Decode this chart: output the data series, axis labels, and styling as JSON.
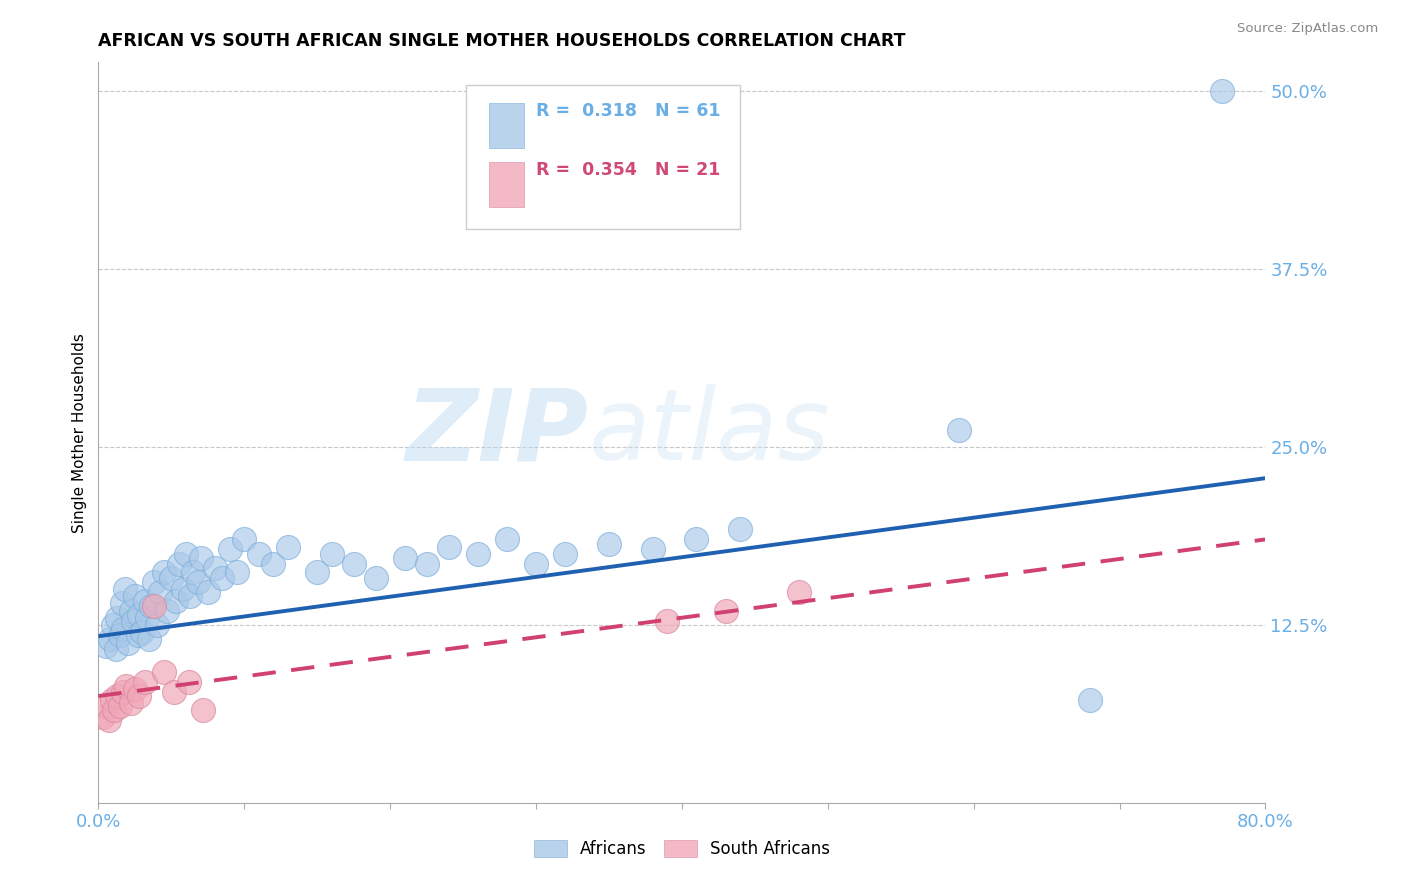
{
  "title": "AFRICAN VS SOUTH AFRICAN SINGLE MOTHER HOUSEHOLDS CORRELATION CHART",
  "source_text": "Source: ZipAtlas.com",
  "ylabel": "Single Mother Households",
  "xlim": [
    0.0,
    0.8
  ],
  "ylim": [
    0.0,
    0.52
  ],
  "yticks": [
    0.125,
    0.25,
    0.375,
    0.5
  ],
  "ytick_labels": [
    "12.5%",
    "25.0%",
    "37.5%",
    "50.0%"
  ],
  "xticks": [
    0.0,
    0.1,
    0.2,
    0.3,
    0.4,
    0.5,
    0.6,
    0.7,
    0.8
  ],
  "xtick_labels": [
    "0.0%",
    "",
    "",
    "",
    "",
    "",
    "",
    "",
    "80.0%"
  ],
  "axis_color": "#6aaee6",
  "grid_color": "#c8c8c8",
  "watermark_zip": "ZIP",
  "watermark_atlas": "atlas",
  "blue_color": "#a8c8e8",
  "blue_line_color": "#2060b0",
  "pink_color": "#f0a8b8",
  "pink_line_color": "#d04070",
  "legend_R1_val": "0.318",
  "legend_N1_val": "61",
  "legend_R2_val": "0.354",
  "legend_N2_val": "21",
  "africans_x": [
    0.005,
    0.008,
    0.01,
    0.012,
    0.013,
    0.015,
    0.016,
    0.017,
    0.018,
    0.02,
    0.022,
    0.024,
    0.025,
    0.027,
    0.028,
    0.03,
    0.032,
    0.033,
    0.035,
    0.036,
    0.038,
    0.04,
    0.042,
    0.045,
    0.047,
    0.05,
    0.053,
    0.055,
    0.058,
    0.06,
    0.063,
    0.065,
    0.068,
    0.07,
    0.075,
    0.08,
    0.085,
    0.09,
    0.095,
    0.1,
    0.11,
    0.12,
    0.13,
    0.15,
    0.16,
    0.175,
    0.19,
    0.21,
    0.225,
    0.24,
    0.26,
    0.28,
    0.3,
    0.32,
    0.35,
    0.38,
    0.41,
    0.44,
    0.59,
    0.68,
    0.77
  ],
  "africans_y": [
    0.11,
    0.115,
    0.125,
    0.108,
    0.13,
    0.118,
    0.14,
    0.122,
    0.15,
    0.112,
    0.135,
    0.128,
    0.145,
    0.118,
    0.132,
    0.12,
    0.142,
    0.13,
    0.115,
    0.138,
    0.155,
    0.125,
    0.148,
    0.162,
    0.135,
    0.158,
    0.142,
    0.168,
    0.15,
    0.175,
    0.145,
    0.162,
    0.155,
    0.172,
    0.148,
    0.165,
    0.158,
    0.178,
    0.162,
    0.185,
    0.175,
    0.168,
    0.18,
    0.162,
    0.175,
    0.168,
    0.158,
    0.172,
    0.168,
    0.18,
    0.175,
    0.185,
    0.168,
    0.175,
    0.182,
    0.178,
    0.185,
    0.192,
    0.262,
    0.072,
    0.5
  ],
  "south_africans_x": [
    0.003,
    0.005,
    0.007,
    0.009,
    0.011,
    0.013,
    0.015,
    0.017,
    0.019,
    0.022,
    0.025,
    0.028,
    0.032,
    0.038,
    0.045,
    0.052,
    0.062,
    0.072,
    0.39,
    0.43,
    0.48
  ],
  "south_africans_y": [
    0.06,
    0.068,
    0.058,
    0.072,
    0.065,
    0.075,
    0.068,
    0.078,
    0.082,
    0.07,
    0.08,
    0.075,
    0.085,
    0.138,
    0.092,
    0.078,
    0.085,
    0.065,
    0.128,
    0.135,
    0.148
  ],
  "africans_trend_start_y": 0.117,
  "africans_trend_end_y": 0.228,
  "south_africans_trend_start_y": 0.075,
  "south_africans_trend_end_y": 0.185
}
